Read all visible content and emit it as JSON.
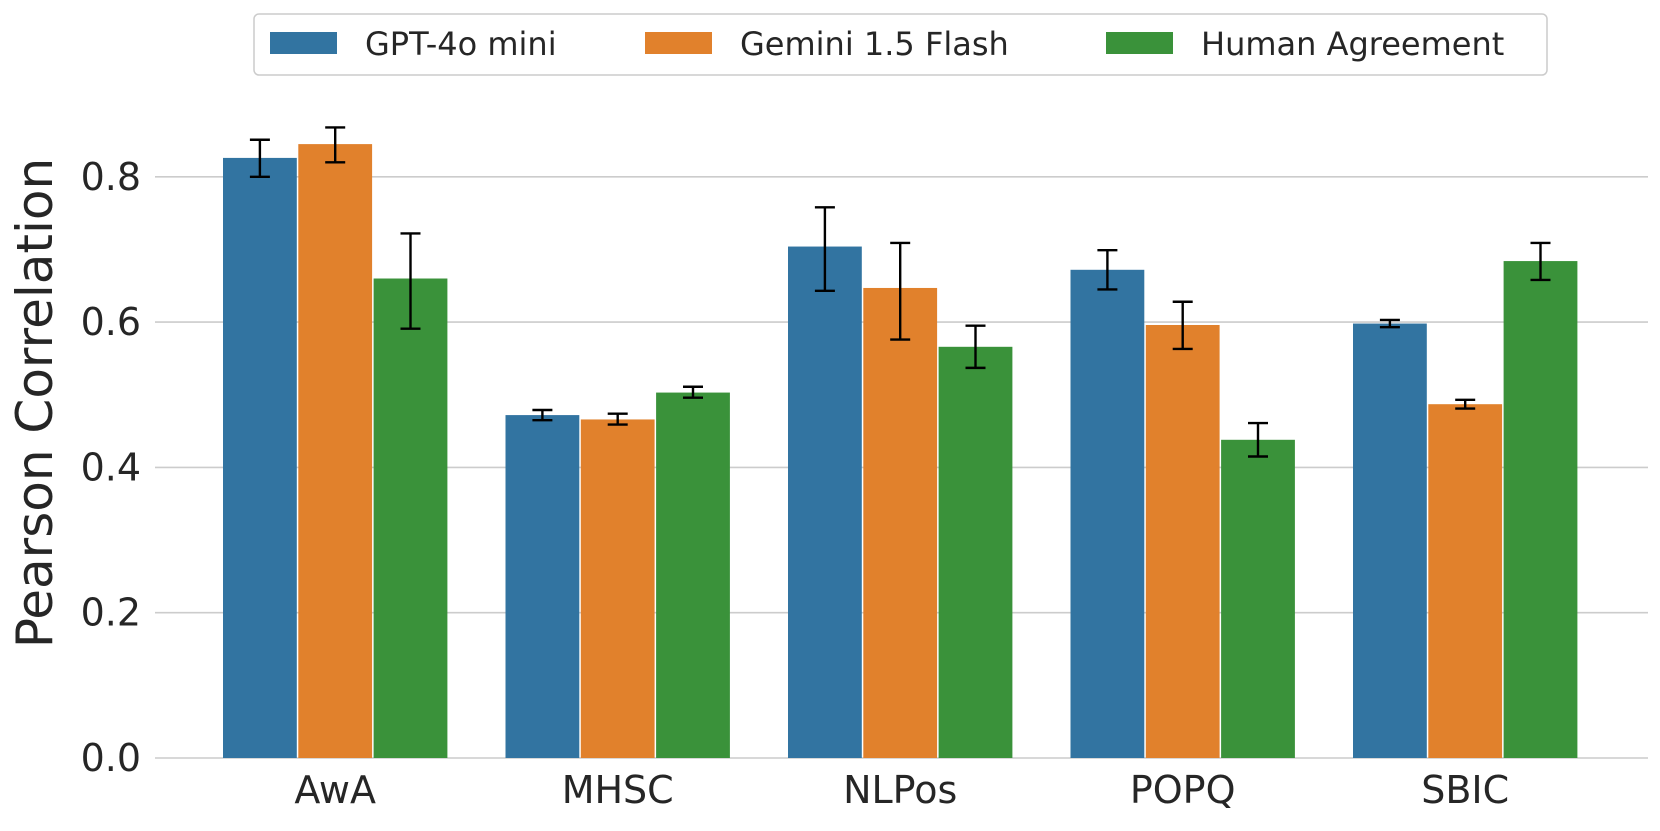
{
  "chart_data": {
    "type": "bar",
    "title": "",
    "xlabel": "",
    "ylabel": "Pearson Correlation",
    "ylim": [
      0,
      0.9
    ],
    "yticks": [
      "0.0",
      "0.2",
      "0.4",
      "0.6",
      "0.8"
    ],
    "grid": "horizontal",
    "legend_position": "top-center",
    "categories": [
      "AwA",
      "MHSC",
      "NLPos",
      "POPQ",
      "SBIC"
    ],
    "series": [
      {
        "name": "GPT-4o mini",
        "color": "#3274a1",
        "values": [
          0.826,
          0.472,
          0.704,
          0.672,
          0.598
        ],
        "error_low": [
          0.8,
          0.465,
          0.643,
          0.645,
          0.593
        ],
        "error_high": [
          0.851,
          0.479,
          0.758,
          0.699,
          0.603
        ]
      },
      {
        "name": "Gemini 1.5 Flash",
        "color": "#e1812c",
        "values": [
          0.845,
          0.466,
          0.647,
          0.596,
          0.487
        ],
        "error_low": [
          0.82,
          0.459,
          0.576,
          0.563,
          0.481
        ],
        "error_high": [
          0.868,
          0.474,
          0.709,
          0.628,
          0.493
        ]
      },
      {
        "name": "Human Agreement",
        "color": "#3a923a",
        "values": [
          0.66,
          0.503,
          0.566,
          0.438,
          0.684
        ],
        "error_low": [
          0.591,
          0.496,
          0.537,
          0.415,
          0.658
        ],
        "error_high": [
          0.722,
          0.511,
          0.595,
          0.461,
          0.709
        ]
      }
    ]
  }
}
